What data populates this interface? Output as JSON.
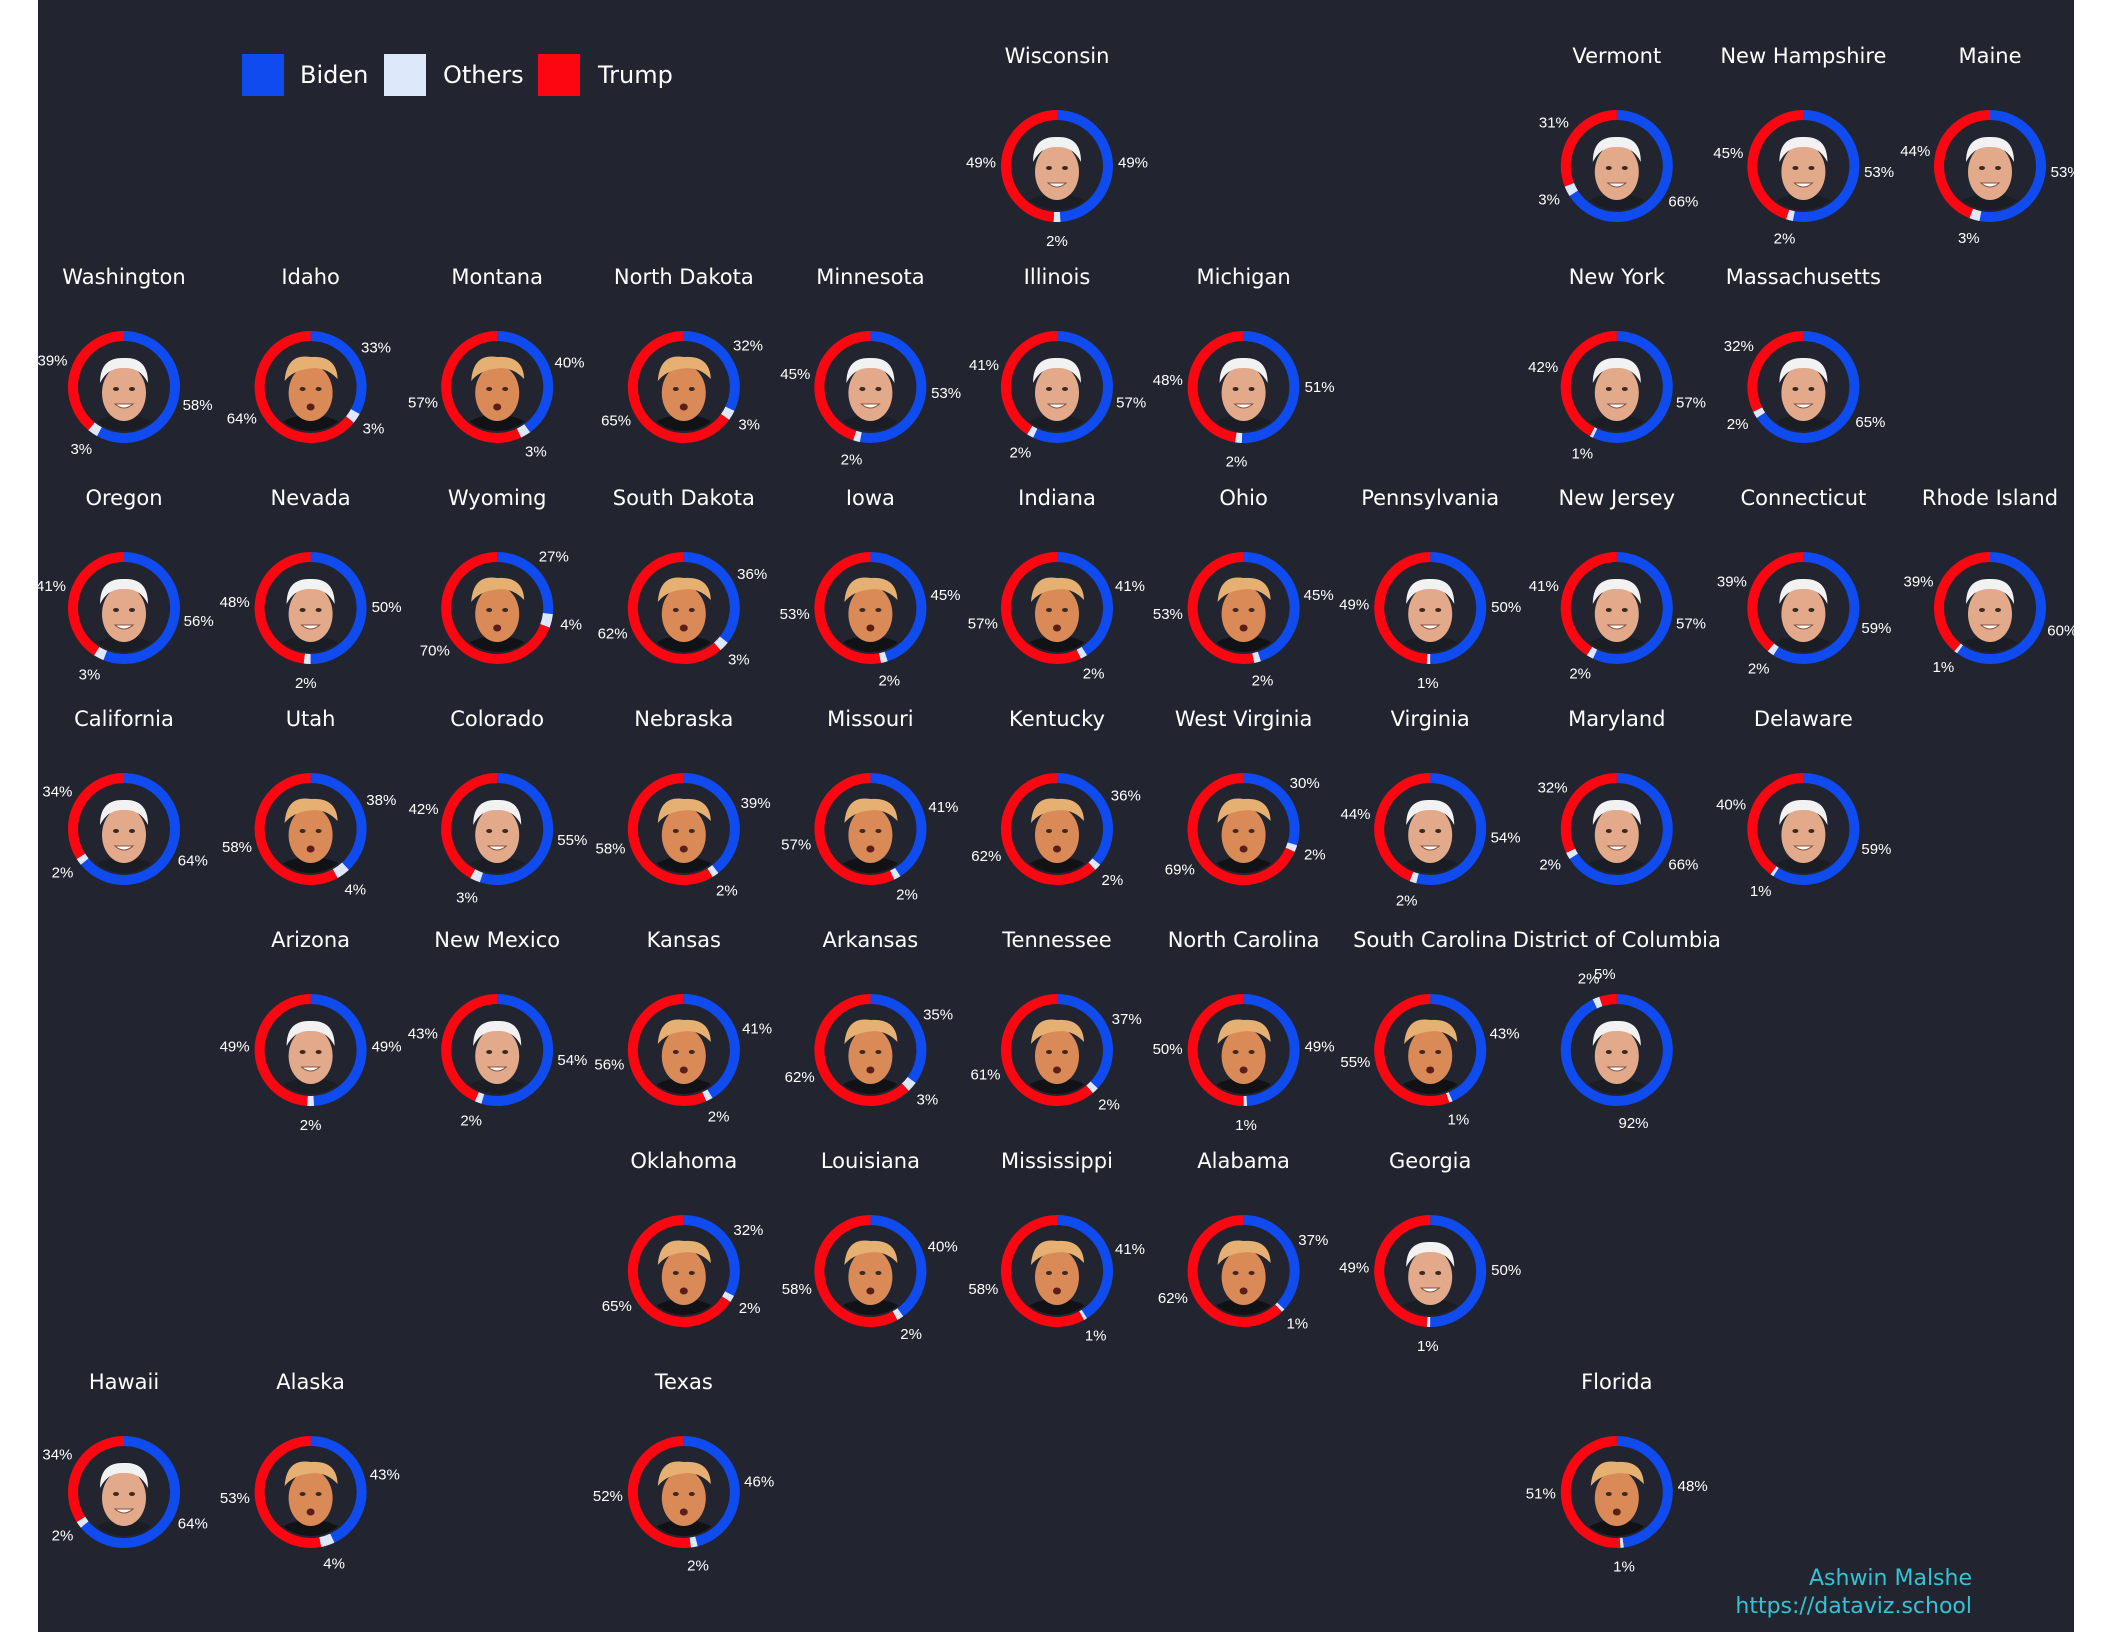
{
  "colors": {
    "Biden": "#0f4bef",
    "Others": "#dde9fb",
    "Trump": "#fe0611",
    "background": "#22252f",
    "credit": "#33c3d4"
  },
  "legend": {
    "biden": "Biden",
    "others": "Others",
    "trump": "Trump"
  },
  "credit": {
    "author": "Ashwin Malshe",
    "url": "https://dataviz.school"
  },
  "chart_data": {
    "type": "donut-grid",
    "series_order": [
      "Biden",
      "Others",
      "Trump"
    ],
    "states": [
      {
        "name": "Wisconsin",
        "row": 0,
        "col": 5,
        "biden": 49,
        "others": 2,
        "trump": 49,
        "winner": "Biden"
      },
      {
        "name": "Vermont",
        "row": 0,
        "col": 8,
        "biden": 66,
        "others": 3,
        "trump": 31,
        "winner": "Biden"
      },
      {
        "name": "New Hampshire",
        "row": 0,
        "col": 9,
        "biden": 53,
        "others": 2,
        "trump": 45,
        "winner": "Biden"
      },
      {
        "name": "Maine",
        "row": 0,
        "col": 10,
        "biden": 53,
        "others": 3,
        "trump": 44,
        "winner": "Biden"
      },
      {
        "name": "Washington",
        "row": 1,
        "col": 0,
        "biden": 58,
        "others": 3,
        "trump": 39,
        "winner": "Biden"
      },
      {
        "name": "Idaho",
        "row": 1,
        "col": 1,
        "biden": 33,
        "others": 3,
        "trump": 64,
        "winner": "Trump"
      },
      {
        "name": "Montana",
        "row": 1,
        "col": 2,
        "biden": 40,
        "others": 3,
        "trump": 57,
        "winner": "Trump"
      },
      {
        "name": "North Dakota",
        "row": 1,
        "col": 3,
        "biden": 32,
        "others": 3,
        "trump": 65,
        "winner": "Trump"
      },
      {
        "name": "Minnesota",
        "row": 1,
        "col": 4,
        "biden": 53,
        "others": 2,
        "trump": 45,
        "winner": "Biden"
      },
      {
        "name": "Illinois",
        "row": 1,
        "col": 5,
        "biden": 57,
        "others": 2,
        "trump": 41,
        "winner": "Biden"
      },
      {
        "name": "Michigan",
        "row": 1,
        "col": 6,
        "biden": 51,
        "others": 2,
        "trump": 48,
        "winner": "Biden"
      },
      {
        "name": "New York",
        "row": 1,
        "col": 8,
        "biden": 57,
        "others": 1,
        "trump": 42,
        "winner": "Biden"
      },
      {
        "name": "Massachusetts",
        "row": 1,
        "col": 9,
        "biden": 65,
        "others": 2,
        "trump": 32,
        "winner": "Biden"
      },
      {
        "name": "Oregon",
        "row": 2,
        "col": 0,
        "biden": 56,
        "others": 3,
        "trump": 41,
        "winner": "Biden"
      },
      {
        "name": "Nevada",
        "row": 2,
        "col": 1,
        "biden": 50,
        "others": 2,
        "trump": 48,
        "winner": "Biden"
      },
      {
        "name": "Wyoming",
        "row": 2,
        "col": 2,
        "biden": 27,
        "others": 4,
        "trump": 70,
        "winner": "Trump"
      },
      {
        "name": "South Dakota",
        "row": 2,
        "col": 3,
        "biden": 36,
        "others": 3,
        "trump": 62,
        "winner": "Trump"
      },
      {
        "name": "Iowa",
        "row": 2,
        "col": 4,
        "biden": 45,
        "others": 2,
        "trump": 53,
        "winner": "Trump"
      },
      {
        "name": "Indiana",
        "row": 2,
        "col": 5,
        "biden": 41,
        "others": 2,
        "trump": 57,
        "winner": "Trump"
      },
      {
        "name": "Ohio",
        "row": 2,
        "col": 6,
        "biden": 45,
        "others": 2,
        "trump": 53,
        "winner": "Trump"
      },
      {
        "name": "Pennsylvania",
        "row": 2,
        "col": 7,
        "biden": 50,
        "others": 1,
        "trump": 49,
        "winner": "Biden"
      },
      {
        "name": "New Jersey",
        "row": 2,
        "col": 8,
        "biden": 57,
        "others": 2,
        "trump": 41,
        "winner": "Biden"
      },
      {
        "name": "Connecticut",
        "row": 2,
        "col": 9,
        "biden": 59,
        "others": 2,
        "trump": 39,
        "winner": "Biden"
      },
      {
        "name": "Rhode Island",
        "row": 2,
        "col": 10,
        "biden": 60,
        "others": 1,
        "trump": 39,
        "winner": "Biden"
      },
      {
        "name": "California",
        "row": 3,
        "col": 0,
        "biden": 64,
        "others": 2,
        "trump": 34,
        "winner": "Biden"
      },
      {
        "name": "Utah",
        "row": 3,
        "col": 1,
        "biden": 38,
        "others": 4,
        "trump": 58,
        "winner": "Trump"
      },
      {
        "name": "Colorado",
        "row": 3,
        "col": 2,
        "biden": 55,
        "others": 3,
        "trump": 42,
        "winner": "Biden"
      },
      {
        "name": "Nebraska",
        "row": 3,
        "col": 3,
        "biden": 39,
        "others": 2,
        "trump": 58,
        "winner": "Trump"
      },
      {
        "name": "Missouri",
        "row": 3,
        "col": 4,
        "biden": 41,
        "others": 2,
        "trump": 57,
        "winner": "Trump"
      },
      {
        "name": "Kentucky",
        "row": 3,
        "col": 5,
        "biden": 36,
        "others": 2,
        "trump": 62,
        "winner": "Trump"
      },
      {
        "name": "West Virginia",
        "row": 3,
        "col": 6,
        "biden": 30,
        "others": 2,
        "trump": 69,
        "winner": "Trump"
      },
      {
        "name": "Virginia",
        "row": 3,
        "col": 7,
        "biden": 54,
        "others": 2,
        "trump": 44,
        "winner": "Biden"
      },
      {
        "name": "Maryland",
        "row": 3,
        "col": 8,
        "biden": 66,
        "others": 2,
        "trump": 32,
        "winner": "Biden"
      },
      {
        "name": "Delaware",
        "row": 3,
        "col": 9,
        "biden": 59,
        "others": 1,
        "trump": 40,
        "winner": "Biden"
      },
      {
        "name": "Arizona",
        "row": 4,
        "col": 1,
        "biden": 49,
        "others": 2,
        "trump": 49,
        "winner": "Biden"
      },
      {
        "name": "New Mexico",
        "row": 4,
        "col": 2,
        "biden": 54,
        "others": 2,
        "trump": 43,
        "winner": "Biden"
      },
      {
        "name": "Kansas",
        "row": 4,
        "col": 3,
        "biden": 41,
        "others": 2,
        "trump": 56,
        "winner": "Trump"
      },
      {
        "name": "Arkansas",
        "row": 4,
        "col": 4,
        "biden": 35,
        "others": 3,
        "trump": 62,
        "winner": "Trump"
      },
      {
        "name": "Tennessee",
        "row": 4,
        "col": 5,
        "biden": 37,
        "others": 2,
        "trump": 61,
        "winner": "Trump"
      },
      {
        "name": "North Carolina",
        "row": 4,
        "col": 6,
        "biden": 49,
        "others": 1,
        "trump": 50,
        "winner": "Trump"
      },
      {
        "name": "South Carolina",
        "row": 4,
        "col": 7,
        "biden": 43,
        "others": 1,
        "trump": 55,
        "winner": "Trump"
      },
      {
        "name": "District of Columbia",
        "row": 4,
        "col": 8,
        "biden": 92,
        "others": 2,
        "trump": 5,
        "winner": "Biden"
      },
      {
        "name": "Oklahoma",
        "row": 5,
        "col": 3,
        "biden": 32,
        "others": 2,
        "trump": 65,
        "winner": "Trump"
      },
      {
        "name": "Louisiana",
        "row": 5,
        "col": 4,
        "biden": 40,
        "others": 2,
        "trump": 58,
        "winner": "Trump"
      },
      {
        "name": "Mississippi",
        "row": 5,
        "col": 5,
        "biden": 41,
        "others": 1,
        "trump": 58,
        "winner": "Trump"
      },
      {
        "name": "Alabama",
        "row": 5,
        "col": 6,
        "biden": 37,
        "others": 1,
        "trump": 62,
        "winner": "Trump"
      },
      {
        "name": "Georgia",
        "row": 5,
        "col": 7,
        "biden": 50,
        "others": 1,
        "trump": 49,
        "winner": "Biden"
      },
      {
        "name": "Hawaii",
        "row": 6,
        "col": 0,
        "biden": 64,
        "others": 2,
        "trump": 34,
        "winner": "Biden"
      },
      {
        "name": "Alaska",
        "row": 6,
        "col": 1,
        "biden": 43,
        "others": 4,
        "trump": 53,
        "winner": "Trump"
      },
      {
        "name": "Texas",
        "row": 6,
        "col": 3,
        "biden": 46,
        "others": 2,
        "trump": 52,
        "winner": "Trump"
      },
      {
        "name": "Florida",
        "row": 6,
        "col": 8,
        "biden": 48,
        "others": 1,
        "trump": 51,
        "winner": "Trump"
      }
    ]
  }
}
